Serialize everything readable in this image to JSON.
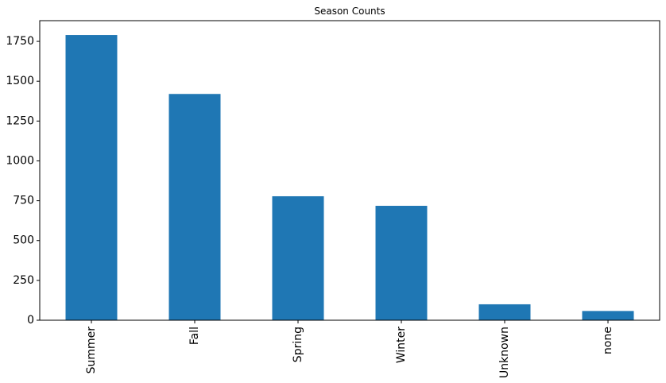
{
  "chart_data": {
    "type": "bar",
    "title": "Season Counts",
    "xlabel": "",
    "ylabel": "",
    "categories": [
      "Summer",
      "Fall",
      "Spring",
      "Winter",
      "Unknown",
      "none"
    ],
    "values": [
      1790,
      1420,
      778,
      718,
      100,
      58
    ],
    "ylim": [
      0,
      1880
    ],
    "yticks": [
      0,
      250,
      500,
      750,
      1000,
      1250,
      1500,
      1750
    ],
    "bar_color": "#1f77b4",
    "grid": false,
    "legend": "none"
  }
}
